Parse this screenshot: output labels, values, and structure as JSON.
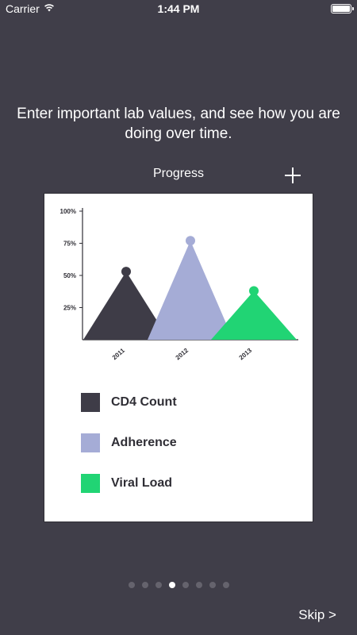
{
  "status_bar": {
    "carrier": "Carrier",
    "time": "1:44 PM",
    "battery_level": 1.0
  },
  "onboarding": {
    "headline": "Enter important lab values, and see how you are doing over time.",
    "card_title": "Progress",
    "add_icon": "plus-icon",
    "skip_label": "Skip >",
    "page_count": 8,
    "active_page": 4
  },
  "chart_data": {
    "type": "area",
    "categories": [
      "2011",
      "2012",
      "2013"
    ],
    "yticks": [
      "100%",
      "75%",
      "50%",
      "25%"
    ],
    "ylim": [
      0,
      100
    ],
    "series": [
      {
        "name": "CD4 Count",
        "color": "#3e3c47",
        "x": "2011",
        "value": 53
      },
      {
        "name": "Adherence",
        "color": "#a5acd6",
        "x": "2012",
        "value": 77
      },
      {
        "name": "Viral Load",
        "color": "#21d474",
        "x": "2013",
        "value": 38
      }
    ]
  }
}
